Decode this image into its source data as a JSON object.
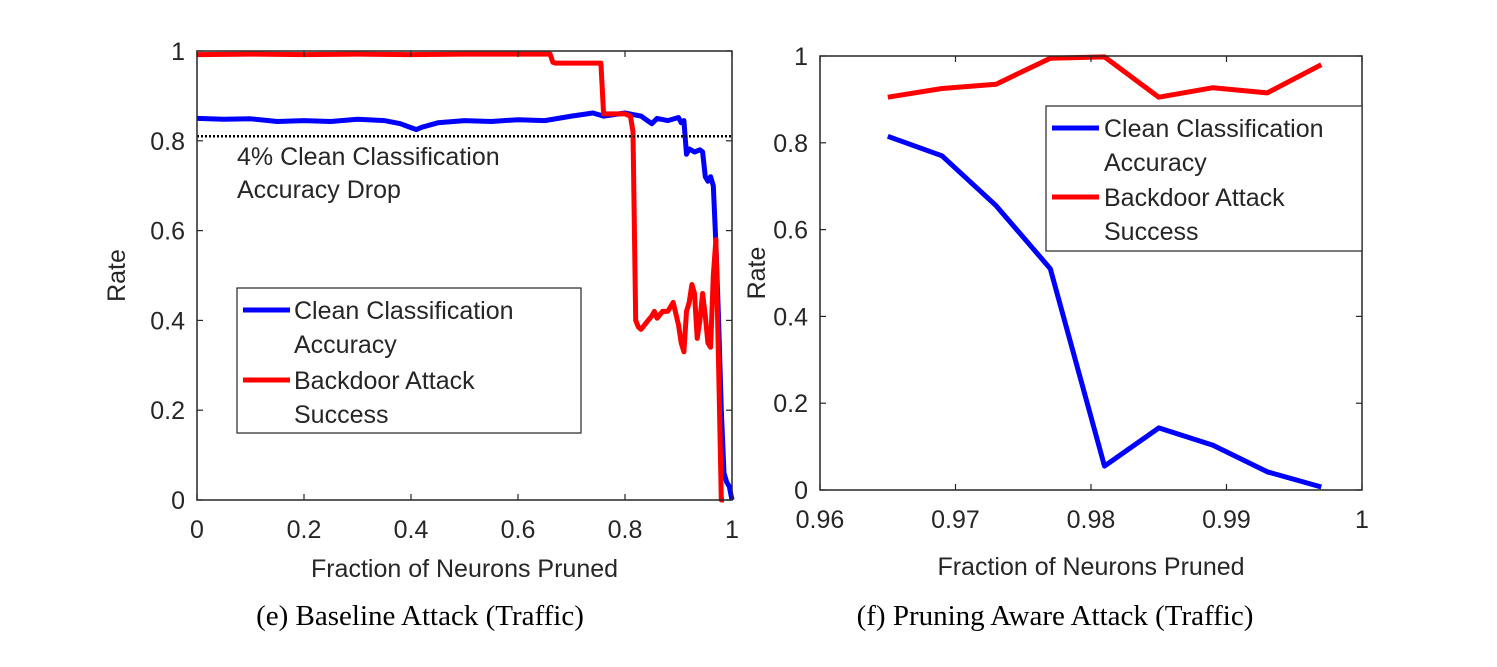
{
  "chart_data": [
    {
      "type": "line",
      "caption": "(e) Baseline Attack (Traffic)",
      "xlabel": "Fraction of Neurons Pruned",
      "ylabel": "Rate",
      "xlim": [
        0,
        1
      ],
      "ylim": [
        0,
        1
      ],
      "xticks": [
        "0",
        "0.2",
        "0.4",
        "0.6",
        "0.8",
        "1"
      ],
      "yticks": [
        "0",
        "0.2",
        "0.4",
        "0.6",
        "0.8",
        "1"
      ],
      "grid": false,
      "legend_position": "center-left",
      "annotation": {
        "lines": [
          "4% Clean Classification",
          "Accuracy Drop"
        ],
        "threshold_y": 0.81
      },
      "series": [
        {
          "name_lines": [
            "Clean Classification",
            "Accuracy"
          ],
          "color": "#0000ff",
          "x": [
            0,
            0.05,
            0.1,
            0.15,
            0.2,
            0.25,
            0.3,
            0.35,
            0.38,
            0.41,
            0.42,
            0.45,
            0.5,
            0.55,
            0.6,
            0.65,
            0.7,
            0.74,
            0.76,
            0.8,
            0.83,
            0.85,
            0.86,
            0.88,
            0.9,
            0.905,
            0.91,
            0.915,
            0.92,
            0.93,
            0.94,
            0.945,
            0.95,
            0.955,
            0.96,
            0.965,
            0.97,
            0.975,
            0.98,
            0.985,
            0.99,
            0.995,
            1.0
          ],
          "y": [
            0.85,
            0.848,
            0.849,
            0.843,
            0.845,
            0.843,
            0.848,
            0.845,
            0.838,
            0.825,
            0.83,
            0.84,
            0.845,
            0.843,
            0.847,
            0.845,
            0.855,
            0.862,
            0.855,
            0.862,
            0.855,
            0.838,
            0.85,
            0.845,
            0.852,
            0.84,
            0.845,
            0.77,
            0.782,
            0.775,
            0.78,
            0.775,
            0.72,
            0.71,
            0.72,
            0.7,
            0.57,
            0.4,
            0.2,
            0.06,
            0.04,
            0.03,
            0.0
          ]
        },
        {
          "name_lines": [
            "Backdoor Attack",
            "Success"
          ],
          "color": "#ff0000",
          "x": [
            0,
            0.1,
            0.2,
            0.3,
            0.4,
            0.5,
            0.6,
            0.66,
            0.665,
            0.67,
            0.7,
            0.755,
            0.76,
            0.8,
            0.81,
            0.815,
            0.82,
            0.825,
            0.83,
            0.84,
            0.85,
            0.855,
            0.86,
            0.87,
            0.88,
            0.89,
            0.9,
            0.905,
            0.91,
            0.915,
            0.92,
            0.925,
            0.93,
            0.935,
            0.94,
            0.945,
            0.95,
            0.955,
            0.96,
            0.965,
            0.97,
            0.975,
            0.98,
            0.985
          ],
          "y": [
            0.992,
            0.993,
            0.992,
            0.993,
            0.992,
            0.993,
            0.993,
            0.993,
            0.975,
            0.973,
            0.973,
            0.973,
            0.86,
            0.86,
            0.855,
            0.82,
            0.4,
            0.385,
            0.38,
            0.395,
            0.41,
            0.42,
            0.405,
            0.42,
            0.42,
            0.44,
            0.39,
            0.35,
            0.33,
            0.42,
            0.44,
            0.48,
            0.46,
            0.36,
            0.4,
            0.46,
            0.41,
            0.35,
            0.34,
            0.5,
            0.58,
            0.3,
            0.0,
            0.0
          ]
        }
      ]
    },
    {
      "type": "line",
      "caption": "(f) Pruning Aware Attack (Traffic)",
      "xlabel": "Fraction of Neurons Pruned",
      "ylabel": "Rate",
      "xlim": [
        0.96,
        1
      ],
      "ylim": [
        0,
        1
      ],
      "xticks": [
        "0.96",
        "0.97",
        "0.98",
        "0.99",
        "1"
      ],
      "yticks": [
        "0",
        "0.2",
        "0.4",
        "0.6",
        "0.8",
        "1"
      ],
      "grid": false,
      "legend_position": "top-right",
      "series": [
        {
          "name_lines": [
            "Clean Classification",
            "Accuracy"
          ],
          "color": "#0000ff",
          "x": [
            0.965,
            0.969,
            0.973,
            0.977,
            0.981,
            0.985,
            0.989,
            0.993,
            0.997
          ],
          "y": [
            0.815,
            0.77,
            0.655,
            0.51,
            0.055,
            0.143,
            0.103,
            0.042,
            0.007
          ]
        },
        {
          "name_lines": [
            "Backdoor Attack",
            "Success"
          ],
          "color": "#ff0000",
          "x": [
            0.965,
            0.969,
            0.973,
            0.977,
            0.981,
            0.985,
            0.989,
            0.993,
            0.997
          ],
          "y": [
            0.905,
            0.925,
            0.935,
            0.995,
            0.998,
            0.905,
            0.927,
            0.915,
            0.98
          ]
        }
      ]
    }
  ]
}
